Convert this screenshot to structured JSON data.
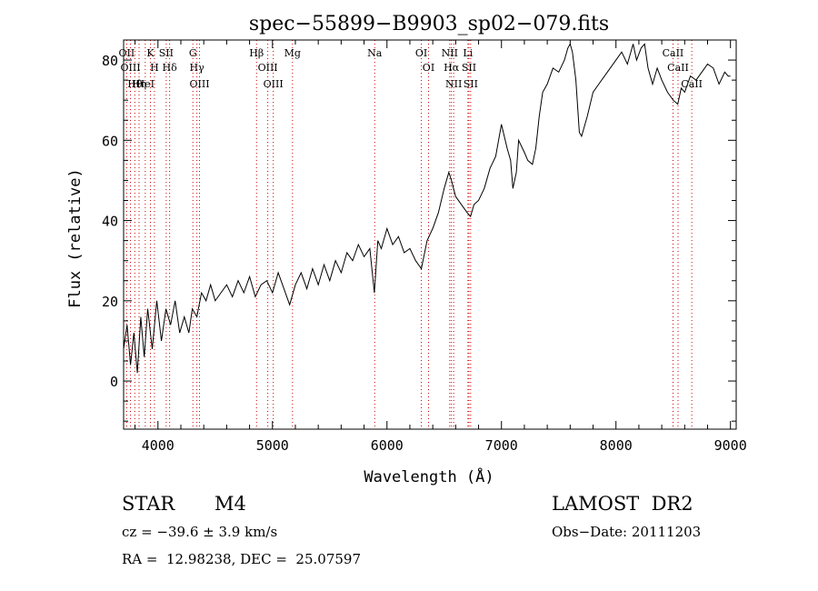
{
  "chart_data": {
    "type": "line",
    "title": "spec−55899−B9903_sp02−079.fits",
    "xlabel": "Wavelength (Å)",
    "ylabel": "Flux (relative)",
    "xlim": [
      3700,
      9050
    ],
    "ylim": [
      -12,
      85
    ],
    "xticks": [
      4000,
      5000,
      6000,
      7000,
      8000,
      9000
    ],
    "yticks": [
      0,
      20,
      40,
      60,
      80
    ],
    "series": [
      {
        "x": [
          3700,
          3730,
          3760,
          3790,
          3820,
          3850,
          3880,
          3910,
          3950,
          3990,
          4030,
          4070,
          4110,
          4150,
          4190,
          4230,
          4270,
          4300,
          4340,
          4380,
          4420,
          4460,
          4500,
          4550,
          4600,
          4650,
          4700,
          4750,
          4800,
          4850,
          4900,
          4950,
          5000,
          5050,
          5100,
          5150,
          5200,
          5250,
          5300,
          5350,
          5400,
          5450,
          5500,
          5550,
          5600,
          5650,
          5700,
          5750,
          5800,
          5850,
          5890,
          5920,
          5950,
          6000,
          6050,
          6100,
          6150,
          6200,
          6250,
          6300,
          6350,
          6400,
          6450,
          6500,
          6540,
          6563,
          6600,
          6650,
          6700,
          6730,
          6760,
          6800,
          6850,
          6900,
          6950,
          7000,
          7050,
          7080,
          7100,
          7130,
          7150,
          7200,
          7230,
          7270,
          7300,
          7330,
          7360,
          7400,
          7450,
          7500,
          7550,
          7580,
          7600,
          7620,
          7650,
          7680,
          7700,
          7750,
          7800,
          7850,
          7900,
          7950,
          8000,
          8050,
          8100,
          8150,
          8180,
          8220,
          8250,
          8280,
          8320,
          8360,
          8400,
          8450,
          8500,
          8540,
          8570,
          8600,
          8650,
          8700,
          8750,
          8800,
          8850,
          8900,
          8950,
          8980,
          9000
        ],
        "y": [
          8,
          14,
          4,
          12,
          2,
          16,
          6,
          18,
          8,
          20,
          10,
          18,
          14,
          20,
          12,
          16,
          12,
          18,
          16,
          22,
          20,
          24,
          20,
          22,
          24,
          21,
          25,
          22,
          26,
          21,
          24,
          25,
          22,
          27,
          23,
          19,
          24,
          27,
          23,
          28,
          24,
          29,
          25,
          30,
          27,
          32,
          30,
          34,
          31,
          33,
          22,
          35,
          33,
          38,
          34,
          36,
          32,
          33,
          30,
          28,
          35,
          38,
          42,
          48,
          52,
          50,
          46,
          44,
          42,
          41,
          44,
          45,
          48,
          53,
          56,
          64,
          58,
          55,
          48,
          52,
          60,
          57,
          55,
          54,
          58,
          66,
          72,
          74,
          78,
          77,
          80,
          83,
          84,
          82,
          75,
          62,
          61,
          66,
          72,
          74,
          76,
          78,
          80,
          82,
          79,
          84,
          80,
          83,
          84,
          78,
          74,
          78,
          75,
          72,
          70,
          69,
          73,
          72,
          76,
          75,
          77,
          79,
          78,
          74,
          77,
          76,
          76
        ]
      }
    ],
    "lines": [
      {
        "name": "Hθ",
        "x": 3798
      },
      {
        "name": "OII",
        "x": 3727
      },
      {
        "name": "OIII",
        "x": 3760
      },
      {
        "name": "Hη",
        "x": 3835
      },
      {
        "name": "HeI",
        "x": 3889
      },
      {
        "name": "K",
        "x": 3934
      },
      {
        "name": "H",
        "x": 3969
      },
      {
        "name": "SII",
        "x": 4072
      },
      {
        "name": "Hδ",
        "x": 4102
      },
      {
        "name": "OIII",
        "x": 4363
      },
      {
        "name": "Hγ",
        "x": 4340
      },
      {
        "name": "G",
        "x": 4305
      },
      {
        "name": "Hβ",
        "x": 4861
      },
      {
        "name": "OIII",
        "x": 4959
      },
      {
        "name": "OIII",
        "x": 5007
      },
      {
        "name": "Mg",
        "x": 5175
      },
      {
        "name": "Na",
        "x": 5893
      },
      {
        "name": "OI",
        "x": 6300
      },
      {
        "name": "OI",
        "x": 6363
      },
      {
        "name": "NII",
        "x": 6548
      },
      {
        "name": "Hα",
        "x": 6563
      },
      {
        "name": "NII",
        "x": 6583
      },
      {
        "name": "Li",
        "x": 6707
      },
      {
        "name": "SII",
        "x": 6716
      },
      {
        "name": "SII",
        "x": 6731
      },
      {
        "name": "CaII",
        "x": 8498
      },
      {
        "name": "CaII",
        "x": 8542
      },
      {
        "name": "CaII",
        "x": 8662
      }
    ],
    "line_color": "#cc0000",
    "grid": false
  },
  "info": {
    "object_class": "STAR",
    "subclass": "M4",
    "survey": "LAMOST  DR2",
    "cz": "cz = −39.6 ± 3.9 km/s",
    "obs_date": "Obs−Date: 20111203",
    "coords": "RA =  12.98238, DEC =  25.07597"
  }
}
